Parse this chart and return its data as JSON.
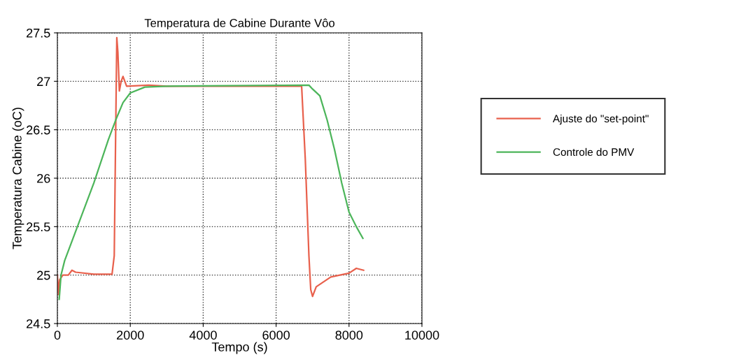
{
  "chart_data": {
    "type": "line",
    "title": "Temperatura de Cabine Durante Vôo",
    "xlabel": "Tempo (s)",
    "ylabel": "Temperatura Cabine (oC)",
    "xlim": [
      0,
      10000
    ],
    "xticks": [
      0,
      2000,
      4000,
      6000,
      8000,
      10000
    ],
    "ylim": [
      24.5,
      27.5
    ],
    "yticks": [
      24.5,
      25,
      25.5,
      26,
      26.5,
      27,
      27.5
    ],
    "grid": true,
    "legend": "right",
    "series": [
      {
        "name": "Ajuste do \"set-point\"",
        "color": "#e8604c",
        "x": [
          0,
          30,
          60,
          150,
          300,
          400,
          500,
          1000,
          1500,
          1560,
          1600,
          1630,
          1660,
          1700,
          1750,
          1800,
          1900,
          2500,
          3000,
          6700,
          6800,
          6900,
          6950,
          7000,
          7100,
          7500,
          8000,
          8200,
          8400
        ],
        "values": [
          25.0,
          24.8,
          24.95,
          25.0,
          25.0,
          25.05,
          25.03,
          25.01,
          25.01,
          25.2,
          26.5,
          27.45,
          27.3,
          26.9,
          27.0,
          27.05,
          26.95,
          26.96,
          26.95,
          26.95,
          26.2,
          25.2,
          24.85,
          24.78,
          24.88,
          24.98,
          25.02,
          25.07,
          25.05
        ]
      },
      {
        "name": "Controle do PMV",
        "color": "#4cb55a",
        "x": [
          50,
          100,
          200,
          400,
          600,
          1000,
          1400,
          1600,
          1800,
          2000,
          2400,
          3000,
          6900,
          7000,
          7200,
          7400,
          7600,
          7800,
          8000,
          8200,
          8380
        ],
        "values": [
          24.75,
          25.0,
          25.15,
          25.35,
          25.55,
          25.95,
          26.4,
          26.6,
          26.78,
          26.88,
          26.94,
          26.95,
          26.96,
          26.92,
          26.85,
          26.6,
          26.3,
          25.95,
          25.65,
          25.5,
          25.38
        ]
      }
    ]
  }
}
